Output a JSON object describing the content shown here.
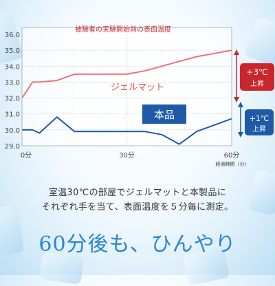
{
  "chart_data": {
    "type": "line",
    "title": "被験者の実験開始前の表面温度",
    "x": [
      0,
      3,
      5,
      10,
      15,
      20,
      30,
      35,
      40,
      45,
      50,
      55,
      60
    ],
    "xticks": [
      "0分",
      "30分",
      "60分"
    ],
    "xlabel": "経過時間（分）",
    "yticks": [
      "36.0",
      "35.0",
      "34.0",
      "33.0",
      "32.0",
      "31.0",
      "30.0",
      "29.0"
    ],
    "ylim": [
      29.0,
      36.0
    ],
    "series": [
      {
        "name": "ジェルマット",
        "color": "#f07070",
        "values": [
          32.0,
          33.0,
          33.0,
          33.1,
          33.5,
          33.5,
          33.5,
          33.7,
          34.0,
          34.3,
          34.6,
          34.8,
          35.0
        ]
      },
      {
        "name": "本品",
        "color": "#1e5aa8",
        "values": [
          30.0,
          30.0,
          29.8,
          30.8,
          29.9,
          29.9,
          29.9,
          29.9,
          29.7,
          29.1,
          29.9,
          30.3,
          30.7
        ]
      }
    ],
    "annotations": {
      "rise_red": {
        "value": "+3℃",
        "label": "上昇"
      },
      "rise_blue": {
        "value": "+1℃",
        "label": "上昇"
      }
    }
  },
  "description": {
    "line1": "室温30℃の部屋でジェルマットと本製品に",
    "line2": "それぞれ手を当て、表面温度を５分毎に測定。"
  },
  "tagline": "60分後も、ひんやり",
  "colors": {
    "red": "#f07070",
    "dark_red": "#c8282c",
    "blue": "#1e5aa8",
    "accent": "#2c86cf"
  }
}
